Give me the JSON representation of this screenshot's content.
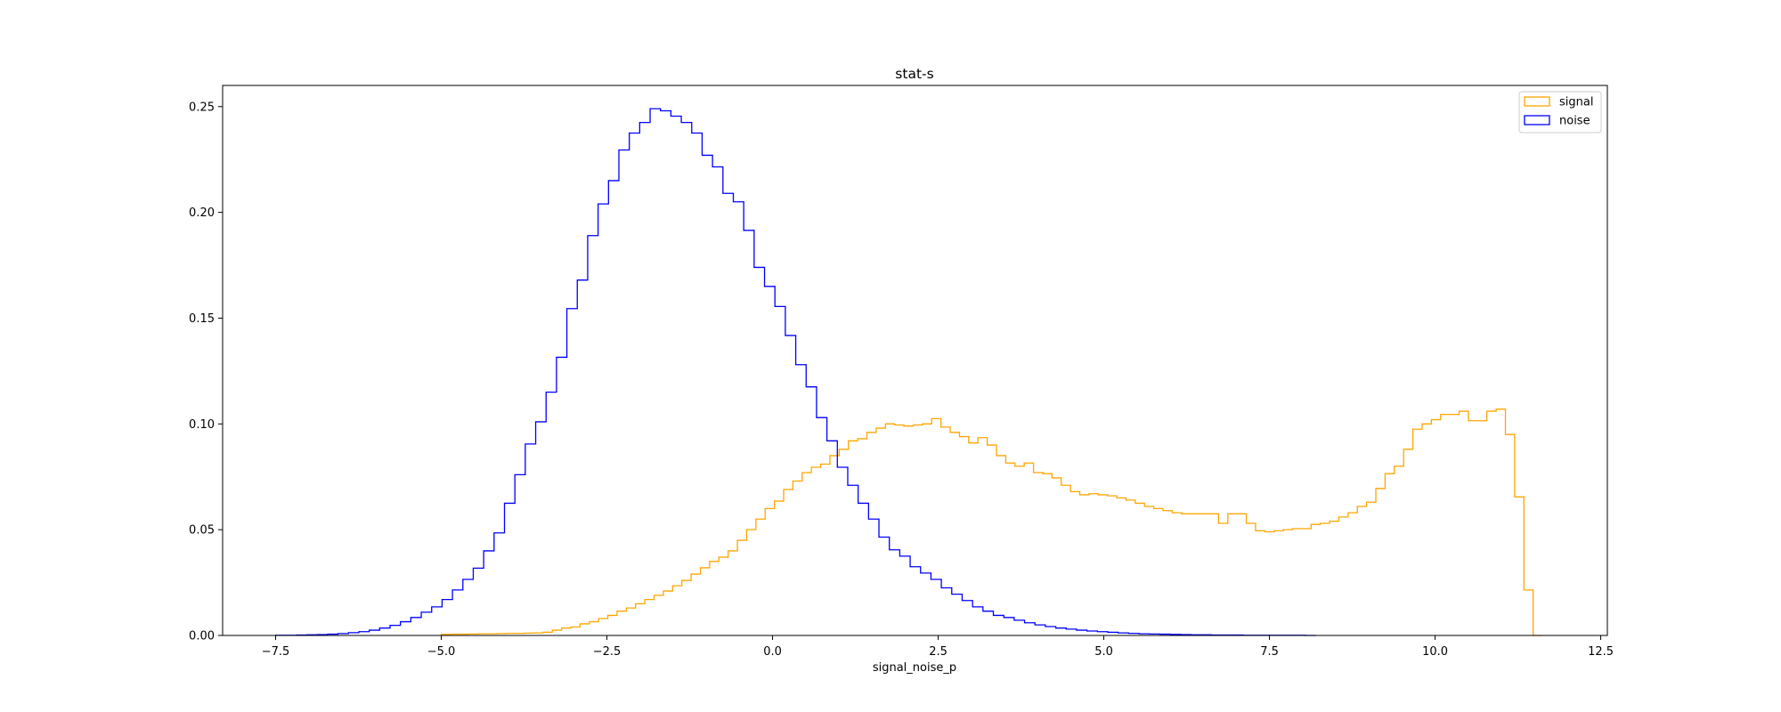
{
  "chart_data": {
    "type": "histogram",
    "title": "stat-s",
    "xlabel": "signal_noise_p",
    "ylabel": "",
    "xlim": [
      -8.3,
      12.6
    ],
    "ylim": [
      0,
      0.26
    ],
    "xticks": [
      -7.5,
      -5.0,
      -2.5,
      0.0,
      2.5,
      5.0,
      7.5,
      10.0,
      12.5
    ],
    "xtick_labels": [
      "−7.5",
      "−5.0",
      "−2.5",
      "0.0",
      "2.5",
      "5.0",
      "7.5",
      "10.0",
      "12.5"
    ],
    "yticks": [
      0.0,
      0.05,
      0.1,
      0.15,
      0.2,
      0.25
    ],
    "ytick_labels": [
      "0.00",
      "0.05",
      "0.10",
      "0.15",
      "0.20",
      "0.25"
    ],
    "grid": false,
    "legend": "upper right",
    "series": [
      {
        "name": "signal",
        "color": "#ffa500",
        "x_start": -5.0,
        "x_end": 11.62,
        "values": [
          0.0005,
          0.0006,
          0.0006,
          0.0007,
          0.0008,
          0.0008,
          0.0009,
          0.001,
          0.001,
          0.0011,
          0.0012,
          0.0015,
          0.0025,
          0.0035,
          0.004,
          0.0055,
          0.0065,
          0.008,
          0.0095,
          0.0115,
          0.013,
          0.015,
          0.017,
          0.019,
          0.021,
          0.0235,
          0.026,
          0.029,
          0.032,
          0.035,
          0.037,
          0.04,
          0.045,
          0.05,
          0.055,
          0.06,
          0.0635,
          0.069,
          0.073,
          0.077,
          0.0795,
          0.081,
          0.085,
          0.088,
          0.092,
          0.093,
          0.096,
          0.098,
          0.1,
          0.0995,
          0.099,
          0.0995,
          0.1,
          0.1025,
          0.0985,
          0.096,
          0.094,
          0.091,
          0.0935,
          0.09,
          0.085,
          0.0815,
          0.08,
          0.0815,
          0.077,
          0.0765,
          0.0745,
          0.071,
          0.068,
          0.0665,
          0.067,
          0.0665,
          0.066,
          0.065,
          0.064,
          0.0625,
          0.061,
          0.06,
          0.059,
          0.058,
          0.0575,
          0.0575,
          0.0575,
          0.0575,
          0.053,
          0.0575,
          0.0575,
          0.053,
          0.0495,
          0.049,
          0.0495,
          0.05,
          0.0505,
          0.0505,
          0.0525,
          0.053,
          0.054,
          0.056,
          0.058,
          0.061,
          0.063,
          0.0695,
          0.0765,
          0.08,
          0.088,
          0.0975,
          0.1,
          0.102,
          0.1045,
          0.1045,
          0.106,
          0.1015,
          0.1015,
          0.106,
          0.107,
          0.095,
          0.0655,
          0.0215,
          0.0
        ]
      },
      {
        "name": "noise",
        "color": "#0000ff",
        "x_start": -7.5,
        "x_end": 8.2,
        "values": [
          0.0001,
          0.0001,
          0.0002,
          0.0003,
          0.0004,
          0.0006,
          0.0009,
          0.0013,
          0.0018,
          0.0025,
          0.0035,
          0.0048,
          0.0065,
          0.0085,
          0.011,
          0.0135,
          0.017,
          0.0215,
          0.0265,
          0.0318,
          0.04,
          0.0485,
          0.0625,
          0.076,
          0.0905,
          0.101,
          0.115,
          0.1315,
          0.1545,
          0.168,
          0.189,
          0.204,
          0.215,
          0.2295,
          0.2375,
          0.2425,
          0.249,
          0.248,
          0.2455,
          0.2425,
          0.2375,
          0.227,
          0.2215,
          0.209,
          0.205,
          0.1915,
          0.174,
          0.165,
          0.1555,
          0.1418,
          0.128,
          0.1175,
          0.103,
          0.092,
          0.0795,
          0.071,
          0.0625,
          0.055,
          0.0465,
          0.0405,
          0.0375,
          0.0325,
          0.0295,
          0.0265,
          0.0225,
          0.0195,
          0.0165,
          0.0135,
          0.0115,
          0.0095,
          0.0085,
          0.0072,
          0.006,
          0.005,
          0.0042,
          0.0035,
          0.003,
          0.0025,
          0.0021,
          0.0018,
          0.0015,
          0.0012,
          0.001,
          0.0008,
          0.0007,
          0.0006,
          0.0005,
          0.0004,
          0.0003,
          0.0003,
          0.0002,
          0.0002,
          0.0002,
          0.0001,
          0.0001,
          0.0001,
          0.0001,
          0.0001,
          0.0001,
          0.0
        ]
      }
    ]
  }
}
